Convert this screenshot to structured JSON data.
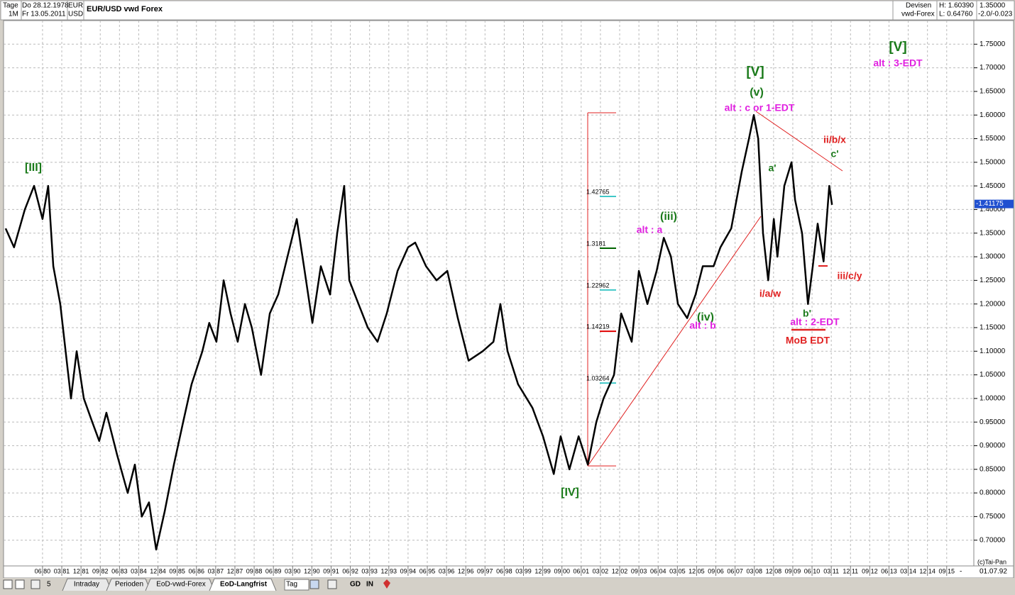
{
  "header": {
    "period": "Tage",
    "interval": "1M",
    "start": "Do 28.12.1978",
    "end": "Fr 13.05.2011",
    "base": "EUR",
    "quote": "USD",
    "title": "EUR/USD  vwd Forex",
    "market": "Devisen",
    "source": "vwd-Forex",
    "high": "H: 1.60390",
    "low": "L: 0.64760",
    "ref": "1.35000",
    "change": "-2.0/-0.023"
  },
  "chart_data": {
    "type": "line",
    "color": "#000000",
    "grid": true,
    "x": [
      1978.98,
      1979.31,
      1979.73,
      1980.09,
      1980.42,
      1980.64,
      1980.84,
      1981.11,
      1981.53,
      1981.75,
      1982.03,
      1982.36,
      1982.63,
      1982.91,
      1983.33,
      1983.74,
      1984.02,
      1984.29,
      1984.57,
      1984.85,
      1985.18,
      1985.54,
      1985.9,
      1986.23,
      1986.65,
      1986.92,
      1987.2,
      1987.48,
      1987.75,
      1988.03,
      1988.31,
      1988.58,
      1988.94,
      1989.28,
      1989.61,
      1989.97,
      1990.33,
      1990.61,
      1990.94,
      1991.27,
      1991.63,
      1991.91,
      1992.18,
      1992.38,
      1992.74,
      1993.1,
      1993.48,
      1993.84,
      1994.26,
      1994.67,
      1994.95,
      1995.37,
      1995.78,
      1996.2,
      1996.61,
      1997.03,
      1997.58,
      1998.0,
      1998.27,
      1998.55,
      1998.96,
      1999.52,
      1999.93,
      2000.35,
      2000.62,
      2000.96,
      2001.32,
      2001.68,
      2002.01,
      2002.29,
      2002.7,
      2002.98,
      2003.39,
      2003.67,
      2004.0,
      2004.36,
      2004.64,
      2004.92,
      2005.19,
      2005.55,
      2005.88,
      2006.16,
      2006.58,
      2006.85,
      2007.27,
      2007.68,
      2007.96,
      2008.15,
      2008.32,
      2008.51,
      2008.71,
      2008.93,
      2009.07,
      2009.34,
      2009.62,
      2009.76,
      2010.03,
      2010.26,
      2010.45,
      2010.64,
      2010.87,
      2011.09,
      2011.2
    ],
    "values": [
      1.36,
      1.32,
      1.4,
      1.45,
      1.38,
      1.45,
      1.28,
      1.2,
      1.0,
      1.1,
      1.0,
      0.95,
      0.91,
      0.97,
      0.88,
      0.8,
      0.86,
      0.75,
      0.78,
      0.68,
      0.76,
      0.86,
      0.95,
      1.03,
      1.1,
      1.16,
      1.12,
      1.25,
      1.18,
      1.12,
      1.2,
      1.15,
      1.05,
      1.18,
      1.22,
      1.3,
      1.38,
      1.28,
      1.16,
      1.28,
      1.22,
      1.35,
      1.45,
      1.25,
      1.2,
      1.15,
      1.12,
      1.18,
      1.27,
      1.32,
      1.33,
      1.28,
      1.25,
      1.27,
      1.17,
      1.08,
      1.1,
      1.12,
      1.2,
      1.1,
      1.03,
      0.98,
      0.92,
      0.84,
      0.92,
      0.85,
      0.92,
      0.86,
      0.95,
      1.0,
      1.05,
      1.18,
      1.12,
      1.27,
      1.2,
      1.27,
      1.34,
      1.3,
      1.2,
      1.17,
      1.22,
      1.28,
      1.28,
      1.32,
      1.36,
      1.48,
      1.55,
      1.6,
      1.55,
      1.35,
      1.25,
      1.38,
      1.3,
      1.45,
      1.5,
      1.42,
      1.35,
      1.2,
      1.28,
      1.37,
      1.29,
      1.45,
      1.41
    ],
    "xlim": [
      1978.9,
      2016.7
    ],
    "ylim": [
      0.65,
      1.8
    ],
    "xticks": [
      {
        "value": 1980.42,
        "label": "06 80"
      },
      {
        "value": 1981.17,
        "label": "03 81"
      },
      {
        "value": 1981.92,
        "label": "12 81"
      },
      {
        "value": 1982.67,
        "label": "09 82"
      },
      {
        "value": 1983.42,
        "label": "06 83"
      },
      {
        "value": 1984.17,
        "label": "03 84"
      },
      {
        "value": 1984.92,
        "label": "12 84"
      },
      {
        "value": 1985.67,
        "label": "09 85"
      },
      {
        "value": 1986.42,
        "label": "06 86"
      },
      {
        "value": 1987.17,
        "label": "03 87"
      },
      {
        "value": 1987.92,
        "label": "12 87"
      },
      {
        "value": 1988.67,
        "label": "09 88"
      },
      {
        "value": 1989.42,
        "label": "06 89"
      },
      {
        "value": 1990.17,
        "label": "03 90"
      },
      {
        "value": 1990.92,
        "label": "12 90"
      },
      {
        "value": 1991.67,
        "label": "09 91"
      },
      {
        "value": 1992.42,
        "label": "06 92"
      },
      {
        "value": 1993.17,
        "label": "03 93"
      },
      {
        "value": 1993.92,
        "label": "12 93"
      },
      {
        "value": 1994.67,
        "label": "09 94"
      },
      {
        "value": 1995.42,
        "label": "06 95"
      },
      {
        "value": 1996.17,
        "label": "03 96"
      },
      {
        "value": 1996.92,
        "label": "12 96"
      },
      {
        "value": 1997.67,
        "label": "09 97"
      },
      {
        "value": 1998.42,
        "label": "06 98"
      },
      {
        "value": 1999.17,
        "label": "03 99"
      },
      {
        "value": 1999.92,
        "label": "12 99"
      },
      {
        "value": 2000.67,
        "label": "09 00"
      },
      {
        "value": 2001.42,
        "label": "06 01"
      },
      {
        "value": 2002.17,
        "label": "03 02"
      },
      {
        "value": 2002.92,
        "label": "12 02"
      },
      {
        "value": 2003.67,
        "label": "09 03"
      },
      {
        "value": 2004.42,
        "label": "06 04"
      },
      {
        "value": 2005.17,
        "label": "03 05"
      },
      {
        "value": 2005.92,
        "label": "12 05"
      },
      {
        "value": 2006.67,
        "label": "09 06"
      },
      {
        "value": 2007.42,
        "label": "06 07"
      },
      {
        "value": 2008.17,
        "label": "03 08"
      },
      {
        "value": 2008.92,
        "label": "12 08"
      },
      {
        "value": 2009.67,
        "label": "09 09"
      },
      {
        "value": 2010.42,
        "label": "06 10"
      },
      {
        "value": 2011.17,
        "label": "03 11"
      },
      {
        "value": 2011.92,
        "label": "12 11"
      },
      {
        "value": 2012.67,
        "label": "09 12"
      },
      {
        "value": 2013.42,
        "label": "06 13"
      },
      {
        "value": 2014.17,
        "label": "03 14"
      },
      {
        "value": 2014.92,
        "label": "12 14"
      },
      {
        "value": 2015.67,
        "label": "09 15"
      }
    ],
    "yticks": [
      {
        "value": 0.7,
        "label": "0.70000"
      },
      {
        "value": 0.75,
        "label": "0.75000"
      },
      {
        "value": 0.8,
        "label": "0.80000"
      },
      {
        "value": 0.85,
        "label": "0.85000"
      },
      {
        "value": 0.9,
        "label": "0.90000"
      },
      {
        "value": 0.95,
        "label": "0.95000"
      },
      {
        "value": 1.0,
        "label": "1.00000"
      },
      {
        "value": 1.05,
        "label": "1.05000"
      },
      {
        "value": 1.1,
        "label": "1.10000"
      },
      {
        "value": 1.15,
        "label": "1.15000"
      },
      {
        "value": 1.2,
        "label": "1.20000"
      },
      {
        "value": 1.25,
        "label": "1.25000"
      },
      {
        "value": 1.3,
        "label": "1.30000"
      },
      {
        "value": 1.35,
        "label": "1.35000"
      },
      {
        "value": 1.4,
        "label": "1.40000"
      },
      {
        "value": 1.45,
        "label": "1.45000"
      },
      {
        "value": 1.5,
        "label": "1.50000"
      },
      {
        "value": 1.55,
        "label": "1.55000"
      },
      {
        "value": 1.6,
        "label": "1.60000"
      },
      {
        "value": 1.65,
        "label": "1.65000"
      },
      {
        "value": 1.7,
        "label": "1.70000"
      },
      {
        "value": 1.75,
        "label": "1.75000"
      }
    ],
    "last_price": {
      "value": 1.41175,
      "label": "-1.41175"
    },
    "fib_levels": [
      {
        "value": 1.42765,
        "color": "#40c8c8"
      },
      {
        "value": 1.3181,
        "color": "#006400"
      },
      {
        "value": 1.22962,
        "color": "#40c8c8"
      },
      {
        "value": 1.14219,
        "color": "#e00000"
      },
      {
        "value": 1.03264,
        "color": "#40c8c8"
      }
    ],
    "annotations": [
      {
        "text": "[III]",
        "color": "#1a7a1a"
      },
      {
        "text": "[IV]",
        "color": "#1a7a1a"
      },
      {
        "text": "(iii)",
        "color": "#1a7a1a"
      },
      {
        "text": "alt : a",
        "color": "#e020e0"
      },
      {
        "text": "(iv)",
        "color": "#1a7a1a"
      },
      {
        "text": "alt : b",
        "color": "#e020e0"
      },
      {
        "text": "[V]",
        "color": "#1a7a1a"
      },
      {
        "text": "(v)",
        "color": "#1a7a1a"
      },
      {
        "text": "alt : c or 1-EDT",
        "color": "#e020e0"
      },
      {
        "text": "a'",
        "color": "#1a7a1a"
      },
      {
        "text": "i/a/w",
        "color": "#e02020"
      },
      {
        "text": "b'",
        "color": "#1a7a1a"
      },
      {
        "text": "alt : 2-EDT",
        "color": "#e020e0"
      },
      {
        "text": "MoB EDT",
        "color": "#e02020"
      },
      {
        "text": "ii/b/x",
        "color": "#e02020"
      },
      {
        "text": "c'",
        "color": "#1a7a1a"
      },
      {
        "text": "iii/c/y",
        "color": "#e02020"
      },
      {
        "text": "[V]",
        "color": "#1a7a1a"
      },
      {
        "text": "alt : 3-EDT",
        "color": "#e020e0"
      }
    ]
  },
  "footer": {
    "axis_end": "01.07.92",
    "copyright": "(c)Tai-Pan",
    "minus": "-"
  },
  "toolbar": {
    "zoom": "5",
    "tabs": [
      "Intraday",
      "Perioden",
      "EoD-vwd-Forex",
      "EoD-Langfrist"
    ],
    "period": "Tag",
    "buttons": [
      "GD",
      "IN"
    ]
  }
}
